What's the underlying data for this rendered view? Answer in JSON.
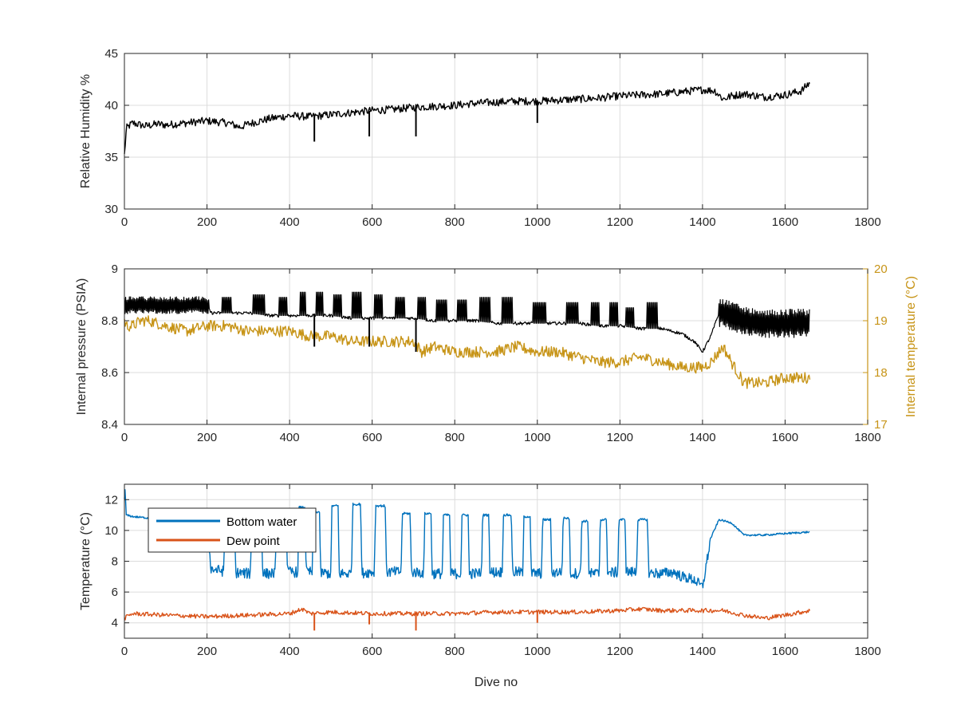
{
  "chart_data": [
    {
      "type": "line",
      "xlabel": "",
      "ylabel": "Relative Humidity %",
      "xlim": [
        0,
        1800
      ],
      "ylim": [
        30,
        45
      ],
      "xticks": [
        0,
        200,
        400,
        600,
        800,
        1000,
        1200,
        1400,
        1600,
        1800
      ],
      "yticks": [
        30,
        35,
        40,
        45
      ],
      "grid": true,
      "series": [
        {
          "name": "",
          "color": "#000000",
          "x": [
            0,
            5,
            20,
            50,
            80,
            100,
            150,
            200,
            250,
            280,
            300,
            350,
            400,
            450,
            500,
            550,
            600,
            650,
            700,
            750,
            800,
            850,
            900,
            950,
            1000,
            1050,
            1100,
            1150,
            1200,
            1250,
            1300,
            1350,
            1400,
            1430,
            1450,
            1470,
            1500,
            1550,
            1600,
            1640,
            1660
          ],
          "y": [
            35.2,
            37.8,
            38.3,
            38.0,
            38.2,
            38.1,
            38.3,
            38.5,
            38.3,
            37.9,
            38.2,
            38.7,
            39.0,
            38.9,
            39.1,
            39.3,
            39.5,
            39.6,
            39.8,
            39.9,
            40.0,
            40.2,
            40.3,
            40.4,
            40.4,
            40.5,
            40.6,
            40.7,
            40.9,
            41.0,
            41.1,
            41.3,
            41.5,
            41.4,
            40.6,
            40.9,
            41.1,
            40.8,
            41.0,
            41.4,
            42.2
          ]
        }
      ],
      "dips": [
        {
          "x": 460,
          "y": 36.5
        },
        {
          "x": 593,
          "y": 37.0
        },
        {
          "x": 706,
          "y": 37.0
        },
        {
          "x": 1000,
          "y": 38.3
        }
      ]
    },
    {
      "type": "line",
      "xlabel": "",
      "ylabel": "Internal pressure (PSIA)",
      "ylabel_right": "Internal temperature (°C)",
      "xlim": [
        0,
        1800
      ],
      "ylim": [
        8.4,
        9
      ],
      "ylim_right": [
        17,
        20
      ],
      "xticks": [
        0,
        200,
        400,
        600,
        800,
        1000,
        1200,
        1400,
        1600,
        1800
      ],
      "yticks": [
        8.4,
        8.6,
        8.8,
        9
      ],
      "yticks_right": [
        17,
        18,
        19,
        20
      ],
      "grid": true,
      "series": [
        {
          "name": "",
          "axis": "left",
          "color": "#000000",
          "x": [
            0,
            50,
            100,
            150,
            200,
            210,
            250,
            300,
            350,
            400,
            450,
            500,
            550,
            600,
            650,
            700,
            750,
            800,
            850,
            900,
            950,
            1000,
            1050,
            1100,
            1150,
            1200,
            1250,
            1300,
            1350,
            1380,
            1400,
            1420,
            1440,
            1450,
            1500,
            1550,
            1600,
            1660
          ],
          "y": [
            8.86,
            8.86,
            8.86,
            8.86,
            8.86,
            8.83,
            8.83,
            8.83,
            8.82,
            8.82,
            8.82,
            8.82,
            8.81,
            8.81,
            8.81,
            8.81,
            8.8,
            8.8,
            8.8,
            8.79,
            8.79,
            8.79,
            8.79,
            8.79,
            8.78,
            8.78,
            8.77,
            8.77,
            8.75,
            8.72,
            8.68,
            8.74,
            8.83,
            8.83,
            8.8,
            8.79,
            8.79,
            8.79
          ],
          "amplitude_bands": [
            {
              "x0": 0,
              "x1": 205,
              "amp": 0.03
            },
            {
              "x0": 1440,
              "x1": 1660,
              "amp": 0.05
            }
          ],
          "pulses": [
            {
              "x0": 235,
              "x1": 260,
              "top": 8.89
            },
            {
              "x0": 310,
              "x1": 340,
              "top": 8.9
            },
            {
              "x0": 375,
              "x1": 395,
              "top": 8.89
            },
            {
              "x0": 425,
              "x1": 440,
              "top": 8.91
            },
            {
              "x0": 465,
              "x1": 480,
              "top": 8.91
            },
            {
              "x0": 505,
              "x1": 525,
              "top": 8.9
            },
            {
              "x0": 550,
              "x1": 575,
              "top": 8.91
            },
            {
              "x0": 605,
              "x1": 625,
              "top": 8.9
            },
            {
              "x0": 655,
              "x1": 680,
              "top": 8.89
            },
            {
              "x0": 710,
              "x1": 730,
              "top": 8.89
            },
            {
              "x0": 755,
              "x1": 780,
              "top": 8.88
            },
            {
              "x0": 805,
              "x1": 830,
              "top": 8.88
            },
            {
              "x0": 860,
              "x1": 885,
              "top": 8.89
            },
            {
              "x0": 915,
              "x1": 940,
              "top": 8.89
            },
            {
              "x0": 990,
              "x1": 1020,
              "top": 8.87
            },
            {
              "x0": 1070,
              "x1": 1100,
              "top": 8.87
            },
            {
              "x0": 1130,
              "x1": 1150,
              "top": 8.87
            },
            {
              "x0": 1175,
              "x1": 1195,
              "top": 8.87
            },
            {
              "x0": 1215,
              "x1": 1235,
              "top": 8.85
            },
            {
              "x0": 1265,
              "x1": 1290,
              "top": 8.87
            }
          ],
          "dips": [
            {
              "x": 460,
              "y": 8.7
            },
            {
              "x": 593,
              "y": 8.7
            },
            {
              "x": 706,
              "y": 8.68
            }
          ]
        },
        {
          "name": "",
          "axis": "right",
          "color": "#C79417",
          "x": [
            0,
            5,
            20,
            40,
            60,
            100,
            150,
            200,
            250,
            300,
            350,
            400,
            450,
            500,
            550,
            600,
            650,
            700,
            720,
            750,
            800,
            850,
            900,
            950,
            1000,
            1050,
            1100,
            1150,
            1200,
            1250,
            1300,
            1350,
            1400,
            1420,
            1450,
            1470,
            1500,
            1550,
            1600,
            1660
          ],
          "y": [
            19.0,
            18.9,
            18.9,
            19.0,
            19.0,
            18.9,
            18.8,
            18.9,
            18.9,
            18.8,
            18.8,
            18.8,
            18.7,
            18.7,
            18.6,
            18.6,
            18.6,
            18.6,
            18.4,
            18.5,
            18.4,
            18.4,
            18.4,
            18.5,
            18.4,
            18.4,
            18.3,
            18.2,
            18.2,
            18.3,
            18.2,
            18.1,
            18.1,
            18.2,
            18.5,
            18.2,
            17.8,
            17.8,
            17.9,
            17.9
          ]
        }
      ]
    },
    {
      "type": "line",
      "xlabel": "Dive no",
      "ylabel": "Temperature (°C)",
      "xlim": [
        0,
        1800
      ],
      "ylim": [
        3,
        13
      ],
      "xticks": [
        0,
        200,
        400,
        600,
        800,
        1000,
        1200,
        1400,
        1600,
        1800
      ],
      "yticks": [
        4,
        6,
        8,
        10,
        12
      ],
      "grid": true,
      "legend": "top-left",
      "series": [
        {
          "name": "Bottom water",
          "color": "#0072BD",
          "base_x": [
            0,
            2,
            4,
            20,
            60,
            100,
            150,
            200,
            210,
            250,
            300,
            350,
            400,
            450,
            500,
            550,
            600,
            650,
            700,
            750,
            800,
            850,
            900,
            950,
            1000,
            1050,
            1100,
            1150,
            1200,
            1250,
            1300,
            1330,
            1350,
            1380,
            1400,
            1420,
            1440,
            1470,
            1500,
            1550,
            1600,
            1660
          ],
          "base_y": [
            12.0,
            12.8,
            11.0,
            10.9,
            10.8,
            10.7,
            10.5,
            10.5,
            7.5,
            7.3,
            7.2,
            7.2,
            7.3,
            7.3,
            7.2,
            7.2,
            7.3,
            7.3,
            7.3,
            7.2,
            7.2,
            7.2,
            7.3,
            7.3,
            7.2,
            7.3,
            7.2,
            7.2,
            7.3,
            7.3,
            7.2,
            7.3,
            7.0,
            6.8,
            6.3,
            9.5,
            10.7,
            10.5,
            9.7,
            9.7,
            9.8,
            9.9
          ],
          "pulses": [
            {
              "x0": 240,
              "x1": 270,
              "top": 10.2
            },
            {
              "x0": 305,
              "x1": 335,
              "top": 10.8
            },
            {
              "x0": 365,
              "x1": 395,
              "top": 10.9
            },
            {
              "x0": 420,
              "x1": 440,
              "top": 11.5
            },
            {
              "x0": 455,
              "x1": 475,
              "top": 11.2
            },
            {
              "x0": 500,
              "x1": 520,
              "top": 11.6
            },
            {
              "x0": 550,
              "x1": 575,
              "top": 11.7
            },
            {
              "x0": 605,
              "x1": 635,
              "top": 11.6
            },
            {
              "x0": 670,
              "x1": 695,
              "top": 11.1
            },
            {
              "x0": 725,
              "x1": 745,
              "top": 11.1
            },
            {
              "x0": 770,
              "x1": 790,
              "top": 11.0
            },
            {
              "x0": 815,
              "x1": 835,
              "top": 11.0
            },
            {
              "x0": 865,
              "x1": 885,
              "top": 11.0
            },
            {
              "x0": 915,
              "x1": 940,
              "top": 11.0
            },
            {
              "x0": 965,
              "x1": 985,
              "top": 10.9
            },
            {
              "x0": 1010,
              "x1": 1035,
              "top": 10.7
            },
            {
              "x0": 1060,
              "x1": 1080,
              "top": 10.8
            },
            {
              "x0": 1105,
              "x1": 1125,
              "top": 10.6
            },
            {
              "x0": 1150,
              "x1": 1170,
              "top": 10.7
            },
            {
              "x0": 1195,
              "x1": 1215,
              "top": 10.7
            },
            {
              "x0": 1240,
              "x1": 1270,
              "top": 10.7
            }
          ]
        },
        {
          "name": "Dew point",
          "color": "#D95319",
          "x": [
            0,
            20,
            100,
            200,
            300,
            400,
            430,
            450,
            500,
            600,
            700,
            800,
            900,
            1000,
            1100,
            1200,
            1250,
            1300,
            1400,
            1450,
            1500,
            1550,
            1600,
            1660
          ],
          "y": [
            4.3,
            4.6,
            4.5,
            4.4,
            4.5,
            4.6,
            4.9,
            4.6,
            4.7,
            4.6,
            4.6,
            4.6,
            4.7,
            4.7,
            4.7,
            4.8,
            4.9,
            4.8,
            4.8,
            4.8,
            4.5,
            4.3,
            4.5,
            4.8
          ],
          "dips": [
            {
              "x": 460,
              "y": 3.5
            },
            {
              "x": 593,
              "y": 3.9
            },
            {
              "x": 706,
              "y": 3.5
            },
            {
              "x": 1000,
              "y": 4.0
            }
          ]
        }
      ]
    }
  ]
}
